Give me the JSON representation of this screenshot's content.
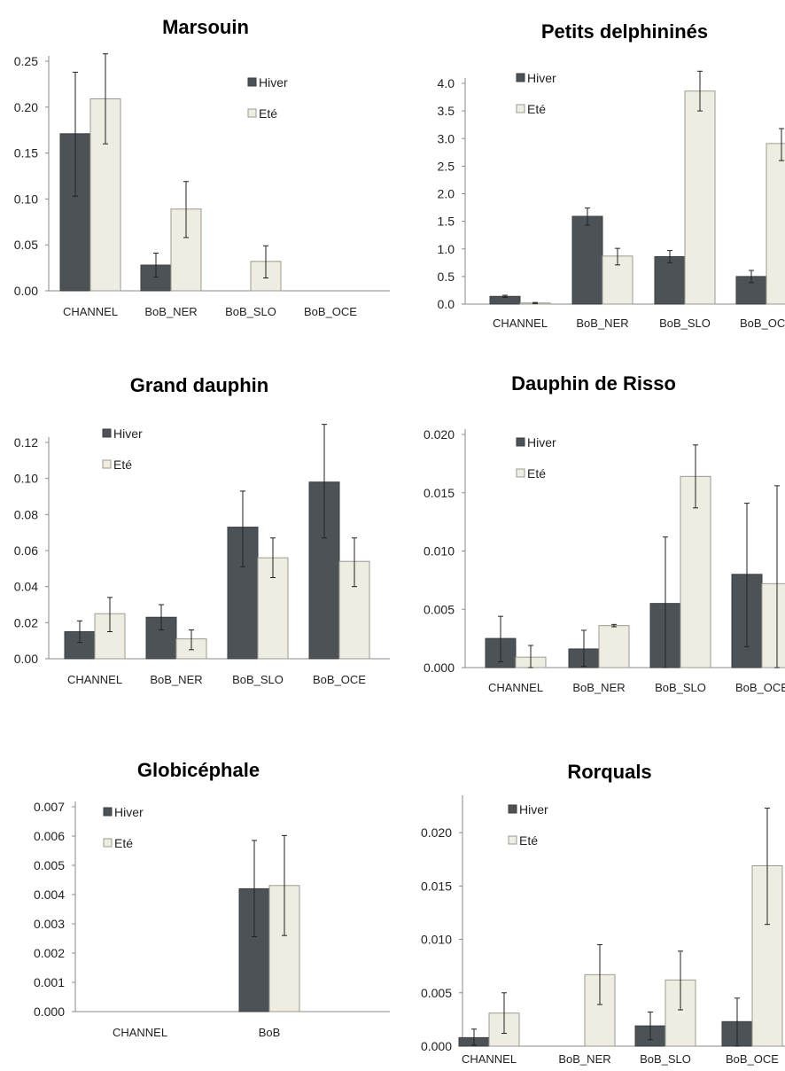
{
  "colors": {
    "hiver": "#4d5257",
    "ete": "#efede2",
    "axis": "#8a8a8a",
    "error": "#222222"
  },
  "legend_labels": {
    "hiver": "Hiver",
    "ete": "Eté"
  },
  "chart_data": [
    {
      "type": "bar",
      "title": "Marsouin",
      "categories": [
        "CHANNEL",
        "BoB_NER",
        "BoB_SLO",
        "BoB_OCE"
      ],
      "ylim": [
        0,
        0.25
      ],
      "yticks": [
        "0.00",
        "0.05",
        "0.10",
        "0.15",
        "0.20",
        "0.25"
      ],
      "legend_position": "top-right",
      "series": [
        {
          "name": "Hiver",
          "values": [
            0.171,
            0.028,
            null,
            null
          ],
          "err": [
            [
              0.103,
              0.238
            ],
            [
              0.015,
              0.041
            ],
            null,
            null
          ]
        },
        {
          "name": "Eté",
          "values": [
            0.209,
            0.089,
            0.032,
            null
          ],
          "err": [
            [
              0.16,
              0.258
            ],
            [
              0.058,
              0.119
            ],
            [
              0.014,
              0.049
            ],
            null
          ]
        }
      ]
    },
    {
      "type": "bar",
      "title": "Petits delphininés",
      "categories": [
        "CHANNEL",
        "BoB_NER",
        "BoB_SLO",
        "BoB_OCE"
      ],
      "ylim": [
        0,
        4.0
      ],
      "yticks": [
        "0.0",
        "0.5",
        "1.0",
        "1.5",
        "2.0",
        "2.5",
        "3.0",
        "3.5",
        "4.0"
      ],
      "legend_position": "top-left",
      "series": [
        {
          "name": "Hiver",
          "values": [
            0.14,
            1.59,
            0.86,
            0.5
          ],
          "err": [
            [
              0.12,
              0.16
            ],
            [
              1.43,
              1.74
            ],
            [
              0.75,
              0.97
            ],
            [
              0.39,
              0.61
            ]
          ]
        },
        {
          "name": "Eté",
          "values": [
            0.02,
            0.87,
            3.86,
            2.91
          ],
          "err": [
            [
              0.01,
              0.03
            ],
            [
              0.71,
              1.01
            ],
            [
              3.5,
              4.22
            ],
            [
              2.6,
              3.18
            ]
          ]
        }
      ]
    },
    {
      "type": "bar",
      "title": "Grand dauphin",
      "categories": [
        "CHANNEL",
        "BoB_NER",
        "BoB_SLO",
        "BoB_OCE"
      ],
      "ylim": [
        0,
        0.12
      ],
      "yticks": [
        "0.00",
        "0.02",
        "0.04",
        "0.06",
        "0.08",
        "0.10",
        "0.12"
      ],
      "legend_position": "top-left",
      "series": [
        {
          "name": "Hiver",
          "values": [
            0.015,
            0.023,
            0.073,
            0.098
          ],
          "err": [
            [
              0.009,
              0.021
            ],
            [
              0.016,
              0.03
            ],
            [
              0.051,
              0.093
            ],
            [
              0.067,
              0.13
            ]
          ]
        },
        {
          "name": "Eté",
          "values": [
            0.025,
            0.011,
            0.056,
            0.054
          ],
          "err": [
            [
              0.015,
              0.034
            ],
            [
              0.005,
              0.016
            ],
            [
              0.045,
              0.067
            ],
            [
              0.04,
              0.067
            ]
          ]
        }
      ]
    },
    {
      "type": "bar",
      "title": "Dauphin de Risso",
      "categories": [
        "CHANNEL",
        "BoB_NER",
        "BoB_SLO",
        "BoB_OCE"
      ],
      "ylim": [
        0,
        0.02
      ],
      "yticks": [
        "0.000",
        "0.005",
        "0.010",
        "0.015",
        "0.020"
      ],
      "legend_position": "top-left",
      "series": [
        {
          "name": "Hiver",
          "values": [
            0.0025,
            0.0016,
            0.0055,
            0.008
          ],
          "err": [
            [
              0.0005,
              0.0044
            ],
            [
              0.0001,
              0.0032
            ],
            [
              0.0,
              0.0112
            ],
            [
              0.0018,
              0.0141
            ]
          ]
        },
        {
          "name": "Eté",
          "values": [
            0.0009,
            0.0036,
            0.0164,
            0.0072
          ],
          "err": [
            [
              0.0,
              0.0019
            ],
            [
              0.0035,
              0.0037
            ],
            [
              0.0137,
              0.0191
            ],
            [
              0.0,
              0.0156
            ]
          ]
        }
      ]
    },
    {
      "type": "bar",
      "title": "Globicéphale",
      "categories": [
        "CHANNEL",
        "BoB"
      ],
      "ylim": [
        0,
        0.007
      ],
      "yticks": [
        "0.000",
        "0.001",
        "0.002",
        "0.003",
        "0.004",
        "0.005",
        "0.006",
        "0.007"
      ],
      "legend_position": "top-left",
      "series": [
        {
          "name": "Hiver",
          "values": [
            null,
            0.0042
          ],
          "err": [
            null,
            [
              0.00256,
              0.00585
            ]
          ]
        },
        {
          "name": "Eté",
          "values": [
            null,
            0.00431
          ],
          "err": [
            null,
            [
              0.0026,
              0.00602
            ]
          ]
        }
      ]
    },
    {
      "type": "bar",
      "title": "Rorquals",
      "categories": [
        "CHANNEL",
        "BoB_NER",
        "BoB_SLO",
        "BoB_OCE"
      ],
      "ylim": [
        0,
        0.023
      ],
      "yticks": [
        "0.000",
        "0.005",
        "0.010",
        "0.015",
        "0.020"
      ],
      "legend_position": "top-left",
      "series": [
        {
          "name": "Hiver",
          "values": [
            0.0008,
            null,
            0.0019,
            0.0023
          ],
          "err": [
            [
              0.0001,
              0.0016
            ],
            null,
            [
              0.0006,
              0.0032
            ],
            [
              0.0,
              0.0045
            ]
          ]
        },
        {
          "name": "Eté",
          "values": [
            0.0031,
            0.0067,
            0.0062,
            0.0169
          ],
          "err": [
            [
              0.0012,
              0.005
            ],
            [
              0.0039,
              0.0095
            ],
            [
              0.0034,
              0.0089
            ],
            [
              0.0114,
              0.0223
            ]
          ]
        }
      ]
    }
  ]
}
